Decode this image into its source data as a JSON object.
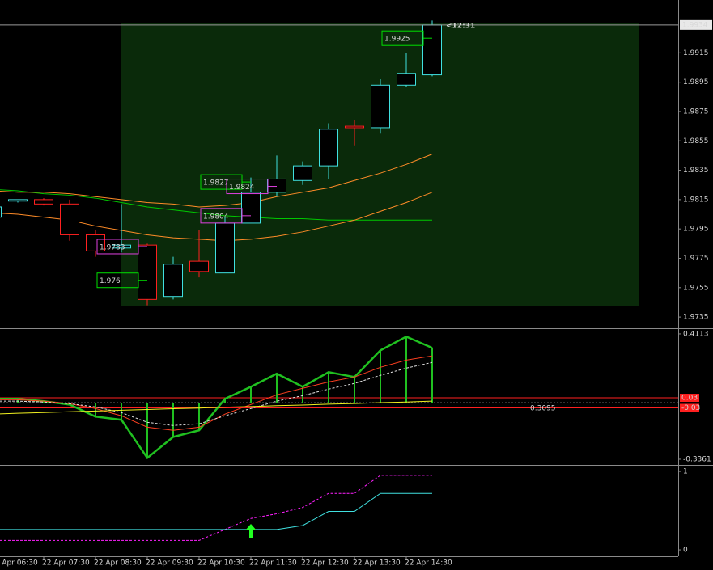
{
  "chart_data": [
    {
      "type": "candlestick",
      "categories": [
        "22 Apr 06:30",
        null,
        "22 Apr 07:30",
        null,
        "22 Apr 08:30",
        null,
        "22 Apr 09:30",
        null,
        "22 Apr 10:30",
        null,
        "22 Apr 11:30",
        null,
        "22 Apr 12:30",
        null,
        "22 Apr 13:30",
        null,
        "22 Apr 14:30",
        null
      ],
      "open": [
        1.9803,
        1.9814,
        1.9815,
        1.9812,
        1.9791,
        1.9782,
        1.9784,
        1.9749,
        1.9773,
        1.9765,
        1.9799,
        1.982,
        1.9828,
        1.9838,
        1.9865,
        1.9864,
        1.9893,
        1.99
      ],
      "high": [
        1.9812,
        1.9815,
        1.9816,
        1.9815,
        1.9794,
        1.9812,
        1.9785,
        1.9776,
        1.9794,
        1.9803,
        1.983,
        1.9845,
        1.9841,
        1.9867,
        1.9869,
        1.9897,
        1.9915,
        1.9937
      ],
      "low": [
        1.9802,
        1.9813,
        1.9811,
        1.9787,
        1.9776,
        1.9779,
        1.9743,
        1.9747,
        1.9762,
        1.9765,
        1.9799,
        1.9817,
        1.9825,
        1.9829,
        1.9852,
        1.986,
        1.9892,
        1.9899
      ],
      "close": [
        1.981,
        1.9815,
        1.9812,
        1.9791,
        1.978,
        1.9784,
        1.9747,
        1.9771,
        1.9766,
        1.9799,
        1.982,
        1.9829,
        1.9838,
        1.9863,
        1.9864,
        1.9893,
        1.9901,
        1.9934
      ],
      "up_color": "#40e0e0",
      "down_color": "#ff2020",
      "series": [
        {
          "color": "#00c800",
          "values": [
            1.9822,
            1.9821,
            1.9819,
            1.9818,
            1.9816,
            1.9813,
            1.981,
            1.9808,
            1.9806,
            1.9804,
            1.9803,
            1.9802,
            1.9802,
            1.9801,
            1.9801,
            1.9801,
            1.9801,
            1.9801
          ]
        },
        {
          "color": "#ff8c28",
          "values": [
            1.9821,
            1.982,
            1.982,
            1.9819,
            1.9817,
            1.9815,
            1.9813,
            1.9812,
            1.981,
            1.9811,
            1.9813,
            1.9817,
            1.982,
            1.9823,
            1.9828,
            1.9833,
            1.9839,
            1.9846
          ]
        },
        {
          "color": "#ff8c28",
          "values": [
            1.9806,
            1.9805,
            1.9803,
            1.9801,
            1.9797,
            1.9794,
            1.9791,
            1.9789,
            1.9788,
            1.9787,
            1.9788,
            1.979,
            1.9793,
            1.9797,
            1.9801,
            1.9807,
            1.9813,
            1.982
          ]
        }
      ],
      "price_labels": [
        {
          "value": 1.9925,
          "color": "#00e000"
        },
        {
          "value": 1.9827,
          "color": "#00e000"
        },
        {
          "value": 1.9824,
          "color": "#e040e0"
        },
        {
          "value": 1.9804,
          "color": "#e040e0"
        },
        {
          "value": 1.9783,
          "color": "#e040e0"
        },
        {
          "value": 1.976,
          "color": "#00e000"
        }
      ],
      "current_price": 1.9934,
      "countdown": "<12:31",
      "ylim": [
        1.9729,
        1.9951
      ],
      "yticks": [
        1.9915,
        1.9895,
        1.9875,
        1.9855,
        1.9835,
        1.9815,
        1.9795,
        1.9775,
        1.9755,
        1.9735
      ]
    },
    {
      "type": "line",
      "series": [
        {
          "color": "#20c020",
          "style": "histogram",
          "values": [
            0.024,
            0.024,
            0.01,
            -0.01,
            -0.082,
            -0.101,
            -0.328,
            -0.203,
            -0.164,
            0.024,
            0.096,
            0.174,
            0.096,
            0.183,
            0.154,
            0.313,
            0.395,
            0.328
          ]
        },
        {
          "color": "#ff4020",
          "style": "solid",
          "values": [
            0.019,
            0.019,
            0.01,
            -0.005,
            -0.034,
            -0.077,
            -0.145,
            -0.164,
            -0.145,
            -0.067,
            -0.01,
            0.048,
            0.087,
            0.125,
            0.154,
            0.212,
            0.255,
            0.28
          ]
        },
        {
          "color": "#e0e0e0",
          "style": "dashed",
          "values": [
            0.01,
            0.01,
            0.005,
            -0.005,
            -0.024,
            -0.058,
            -0.116,
            -0.135,
            -0.125,
            -0.077,
            -0.034,
            0.01,
            0.043,
            0.082,
            0.116,
            0.164,
            0.207,
            0.241
          ]
        },
        {
          "color": "#f0f020",
          "style": "solid",
          "values": [
            -0.067,
            -0.062,
            -0.058,
            -0.053,
            -0.049,
            -0.044,
            -0.04,
            -0.035,
            -0.031,
            -0.026,
            -0.022,
            -0.017,
            -0.013,
            -0.008,
            -0.004,
            0.001,
            0.005,
            0.01
          ]
        }
      ],
      "levels": [
        0.03,
        -0.03
      ],
      "level_color": "#ff2020",
      "current_value": 0.3095,
      "ylim": [
        -0.37,
        0.44
      ],
      "yticks": [
        0.4113,
        -0.3361
      ]
    },
    {
      "type": "line",
      "series": [
        {
          "color": "#ff20ff",
          "style": "dashed",
          "values": [
            0.12,
            0.12,
            0.12,
            0.12,
            0.12,
            0.12,
            0.12,
            0.12,
            0.12,
            0.26,
            0.4,
            0.46,
            0.54,
            0.72,
            0.72,
            0.95,
            0.95,
            0.95
          ]
        },
        {
          "color": "#40e0e0",
          "style": "solid",
          "values": [
            0.26,
            0.26,
            0.26,
            0.26,
            0.26,
            0.26,
            0.26,
            0.26,
            0.26,
            0.26,
            0.26,
            0.26,
            0.31,
            0.49,
            0.49,
            0.72,
            0.72,
            0.72
          ]
        }
      ],
      "ylim": [
        -0.082,
        1.052
      ],
      "yticks": [
        1,
        0
      ]
    }
  ]
}
